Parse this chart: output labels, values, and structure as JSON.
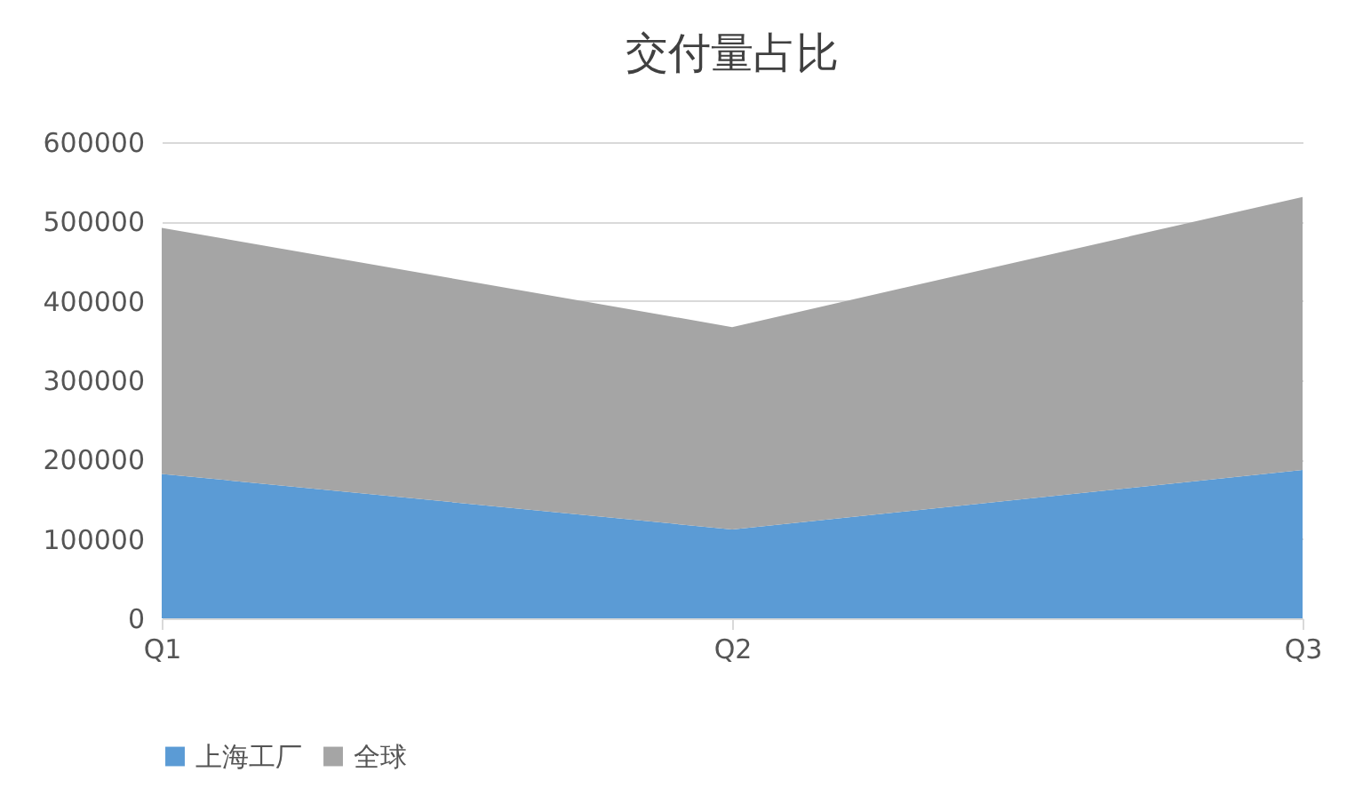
{
  "chart_data": {
    "type": "area",
    "title": "交付量占比",
    "stacked": true,
    "categories": [
      "Q1",
      "Q2",
      "Q3"
    ],
    "series": [
      {
        "name": "上海工厂",
        "color": "#5b9bd5",
        "values": [
          182000,
          112000,
          187000
        ]
      },
      {
        "name": "全球",
        "color": "#a5a5a5",
        "values": [
          310000,
          255000,
          344000
        ]
      }
    ],
    "ylim": [
      0,
      600000
    ],
    "yticks": [
      0,
      100000,
      200000,
      300000,
      400000,
      500000,
      600000
    ],
    "grid": "y",
    "legend": "bottom"
  }
}
